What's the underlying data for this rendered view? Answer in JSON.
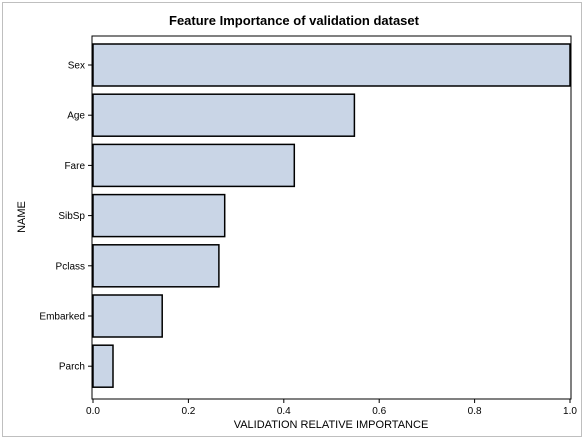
{
  "chart_data": {
    "type": "bar",
    "orientation": "horizontal",
    "title": "Feature Importance of validation dataset",
    "xlabel": "VALIDATION RELATIVE IMPORTANCE",
    "ylabel": "NAME",
    "categories": [
      "Sex",
      "Age",
      "Fare",
      "SibSp",
      "Pclass",
      "Embarked",
      "Parch"
    ],
    "values": [
      1.0,
      0.548,
      0.422,
      0.276,
      0.264,
      0.145,
      0.042
    ],
    "xlim": [
      0,
      1.0
    ],
    "xticks": [
      "0.0",
      "0.2",
      "0.4",
      "0.6",
      "0.8",
      "1.0"
    ],
    "grid": false,
    "colors": {
      "bar_fill": "#c9d5e6",
      "bar_stroke": "#000000",
      "axis": "#000000"
    }
  }
}
